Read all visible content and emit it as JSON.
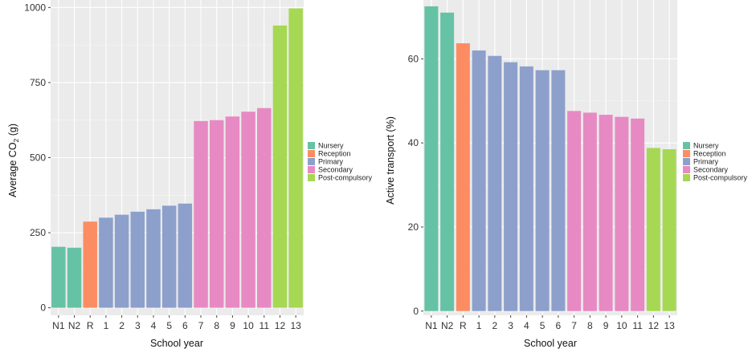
{
  "legend": {
    "items": [
      {
        "label": "Nursery",
        "color": "#66c2a5"
      },
      {
        "label": "Reception",
        "color": "#fc8d62"
      },
      {
        "label": "Primary",
        "color": "#8da0cb"
      },
      {
        "label": "Secondary",
        "color": "#e78ac3"
      },
      {
        "label": "Post-compulsory",
        "color": "#a6d854"
      }
    ]
  },
  "chart_data": [
    {
      "type": "bar",
      "xlabel": "School year",
      "ylabel_main": "Average CO",
      "ylabel_sub": "2",
      "ylabel_unit": " (g)",
      "categories": [
        "N1",
        "N2",
        "R",
        "1",
        "2",
        "3",
        "4",
        "5",
        "6",
        "7",
        "8",
        "9",
        "10",
        "11",
        "12",
        "13"
      ],
      "groups": [
        "Nursery",
        "Nursery",
        "Reception",
        "Primary",
        "Primary",
        "Primary",
        "Primary",
        "Primary",
        "Primary",
        "Secondary",
        "Secondary",
        "Secondary",
        "Secondary",
        "Secondary",
        "Post-compulsory",
        "Post-compulsory"
      ],
      "values": [
        203,
        200,
        287,
        300,
        310,
        320,
        328,
        340,
        347,
        622,
        625,
        637,
        653,
        665,
        940,
        997
      ],
      "ylim": [
        -25,
        1025
      ],
      "yticks": [
        0,
        250,
        500,
        750,
        1000
      ],
      "grid": true,
      "legend_position": "right"
    },
    {
      "type": "bar",
      "xlabel": "School year",
      "ylabel": "Active transport (%)",
      "categories": [
        "N1",
        "N2",
        "R",
        "1",
        "2",
        "3",
        "4",
        "5",
        "6",
        "7",
        "8",
        "9",
        "10",
        "11",
        "12",
        "13"
      ],
      "groups": [
        "Nursery",
        "Nursery",
        "Reception",
        "Primary",
        "Primary",
        "Primary",
        "Primary",
        "Primary",
        "Primary",
        "Secondary",
        "Secondary",
        "Secondary",
        "Secondary",
        "Secondary",
        "Post-compulsory",
        "Post-compulsory"
      ],
      "values": [
        72.5,
        71,
        63.7,
        62,
        60.7,
        59.2,
        58.2,
        57.3,
        57.3,
        47.6,
        47.2,
        46.7,
        46.2,
        45.8,
        38.8,
        38.5
      ],
      "ylim": [
        -1,
        74
      ],
      "yticks": [
        0,
        20,
        40,
        60
      ],
      "grid": true,
      "legend_position": "right"
    }
  ]
}
